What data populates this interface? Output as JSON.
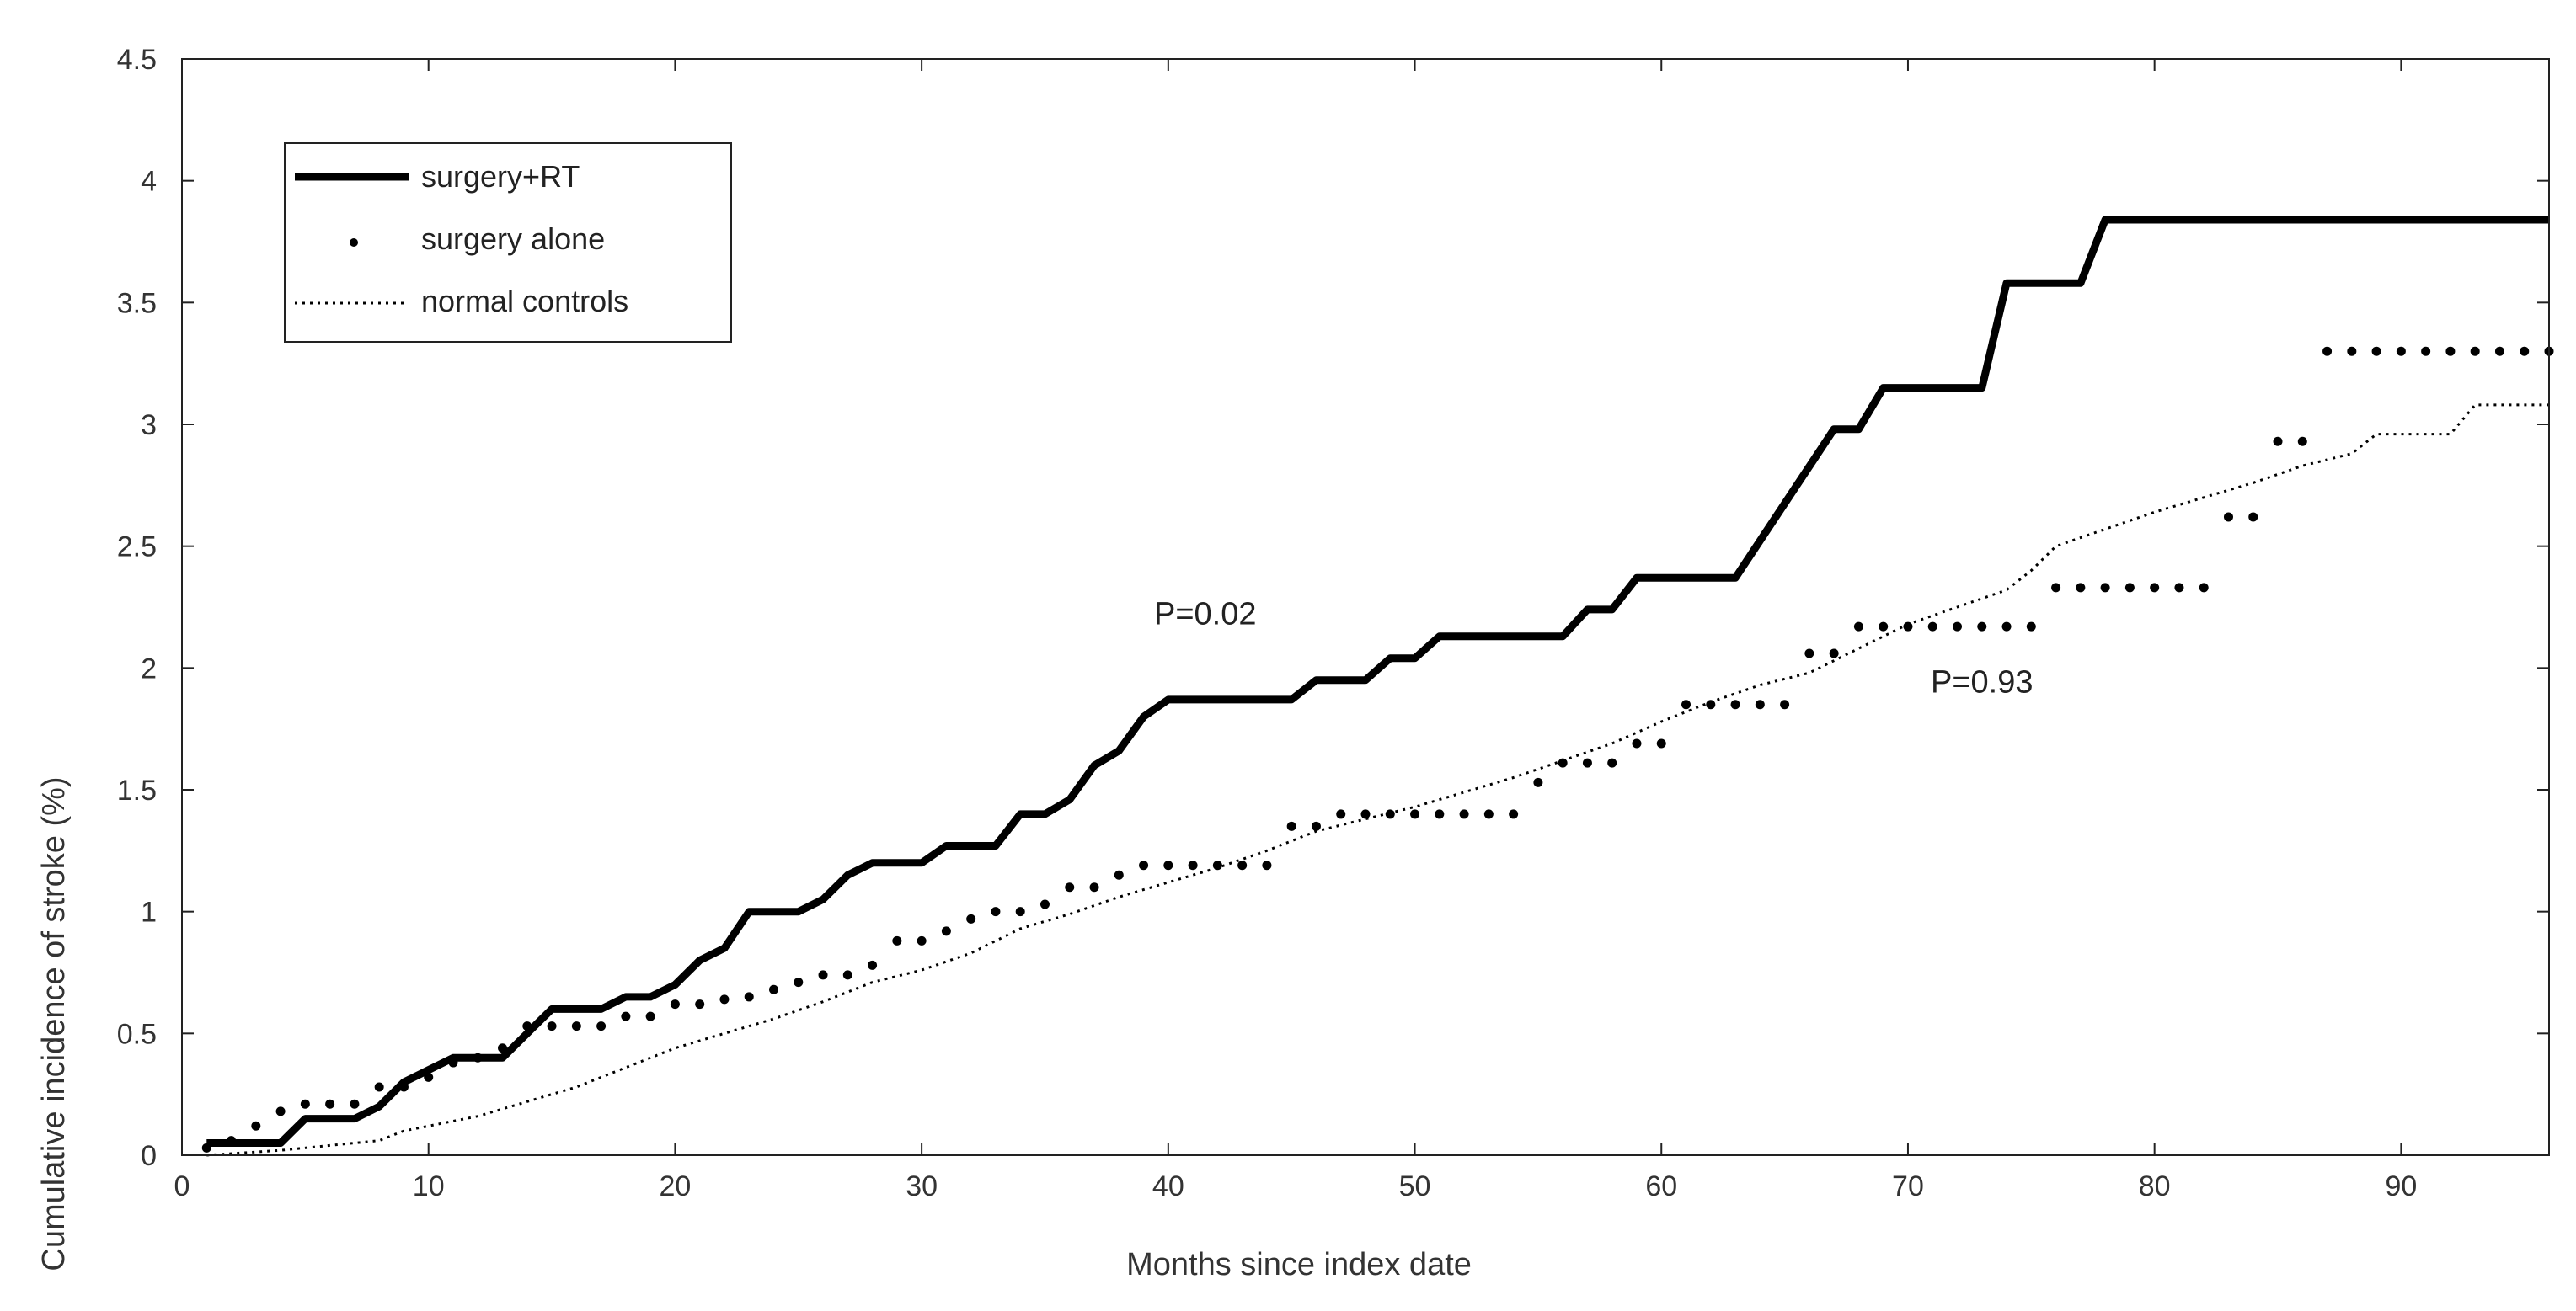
{
  "chart_data": {
    "type": "line",
    "title": "",
    "xlabel": "Months since index date",
    "ylabel": "Cumulative incidence of stroke (%)",
    "xlim": [
      0,
      96
    ],
    "ylim": [
      0,
      4.5
    ],
    "xticks": [
      0,
      10,
      20,
      30,
      40,
      50,
      60,
      70,
      80,
      90
    ],
    "yticks": [
      0,
      0.5,
      1,
      1.5,
      2,
      2.5,
      3,
      3.5,
      4,
      4.5
    ],
    "grid": false,
    "legend_position": "top-left",
    "series": [
      {
        "name": "surgery+RT",
        "style": "solid-thick",
        "points": [
          [
            1,
            0.05
          ],
          [
            4,
            0.05
          ],
          [
            5,
            0.15
          ],
          [
            7,
            0.15
          ],
          [
            8,
            0.2
          ],
          [
            9,
            0.3
          ],
          [
            10,
            0.35
          ],
          [
            11,
            0.4
          ],
          [
            13,
            0.4
          ],
          [
            14,
            0.5
          ],
          [
            15,
            0.6
          ],
          [
            17,
            0.6
          ],
          [
            18,
            0.65
          ],
          [
            19,
            0.65
          ],
          [
            20,
            0.7
          ],
          [
            21,
            0.8
          ],
          [
            22,
            0.85
          ],
          [
            23,
            1.0
          ],
          [
            25,
            1.0
          ],
          [
            26,
            1.05
          ],
          [
            27,
            1.15
          ],
          [
            28,
            1.2
          ],
          [
            30,
            1.2
          ],
          [
            31,
            1.27
          ],
          [
            33,
            1.27
          ],
          [
            34,
            1.4
          ],
          [
            35,
            1.4
          ],
          [
            36,
            1.46
          ],
          [
            37,
            1.6
          ],
          [
            38,
            1.66
          ],
          [
            39,
            1.8
          ],
          [
            40,
            1.87
          ],
          [
            45,
            1.87
          ],
          [
            46,
            1.95
          ],
          [
            48,
            1.95
          ],
          [
            49,
            2.04
          ],
          [
            50,
            2.04
          ],
          [
            51,
            2.13
          ],
          [
            56,
            2.13
          ],
          [
            57,
            2.24
          ],
          [
            58,
            2.24
          ],
          [
            59,
            2.37
          ],
          [
            63,
            2.37
          ],
          [
            67,
            2.98
          ],
          [
            68,
            2.98
          ],
          [
            69,
            3.15
          ],
          [
            73,
            3.15
          ],
          [
            74,
            3.58
          ],
          [
            77,
            3.58
          ],
          [
            78,
            3.84
          ],
          [
            96,
            3.84
          ]
        ]
      },
      {
        "name": "surgery alone",
        "style": "dotted-large",
        "points": [
          [
            1,
            0.03
          ],
          [
            2,
            0.06
          ],
          [
            3,
            0.12
          ],
          [
            4,
            0.18
          ],
          [
            5,
            0.21
          ],
          [
            6,
            0.21
          ],
          [
            7,
            0.21
          ],
          [
            8,
            0.28
          ],
          [
            9,
            0.28
          ],
          [
            10,
            0.32
          ],
          [
            11,
            0.38
          ],
          [
            12,
            0.4
          ],
          [
            13,
            0.44
          ],
          [
            14,
            0.53
          ],
          [
            15,
            0.53
          ],
          [
            16,
            0.53
          ],
          [
            17,
            0.53
          ],
          [
            18,
            0.57
          ],
          [
            19,
            0.57
          ],
          [
            20,
            0.62
          ],
          [
            21,
            0.62
          ],
          [
            22,
            0.64
          ],
          [
            23,
            0.65
          ],
          [
            24,
            0.68
          ],
          [
            25,
            0.71
          ],
          [
            26,
            0.74
          ],
          [
            27,
            0.74
          ],
          [
            28,
            0.78
          ],
          [
            29,
            0.88
          ],
          [
            30,
            0.88
          ],
          [
            31,
            0.92
          ],
          [
            32,
            0.97
          ],
          [
            33,
            1.0
          ],
          [
            34,
            1.0
          ],
          [
            35,
            1.03
          ],
          [
            36,
            1.1
          ],
          [
            37,
            1.1
          ],
          [
            38,
            1.15
          ],
          [
            39,
            1.19
          ],
          [
            40,
            1.19
          ],
          [
            41,
            1.19
          ],
          [
            42,
            1.19
          ],
          [
            43,
            1.19
          ],
          [
            44,
            1.19
          ],
          [
            45,
            1.35
          ],
          [
            46,
            1.35
          ],
          [
            47,
            1.4
          ],
          [
            48,
            1.4
          ],
          [
            49,
            1.4
          ],
          [
            50,
            1.4
          ],
          [
            51,
            1.4
          ],
          [
            52,
            1.4
          ],
          [
            53,
            1.4
          ],
          [
            54,
            1.4
          ],
          [
            55,
            1.53
          ],
          [
            56,
            1.61
          ],
          [
            57,
            1.61
          ],
          [
            58,
            1.61
          ],
          [
            59,
            1.69
          ],
          [
            60,
            1.69
          ],
          [
            61,
            1.85
          ],
          [
            62,
            1.85
          ],
          [
            63,
            1.85
          ],
          [
            64,
            1.85
          ],
          [
            65,
            1.85
          ],
          [
            66,
            2.06
          ],
          [
            67,
            2.06
          ],
          [
            68,
            2.17
          ],
          [
            69,
            2.17
          ],
          [
            70,
            2.17
          ],
          [
            71,
            2.17
          ],
          [
            72,
            2.17
          ],
          [
            73,
            2.17
          ],
          [
            74,
            2.17
          ],
          [
            75,
            2.17
          ],
          [
            76,
            2.33
          ],
          [
            77,
            2.33
          ],
          [
            78,
            2.33
          ],
          [
            79,
            2.33
          ],
          [
            80,
            2.33
          ],
          [
            81,
            2.33
          ],
          [
            82,
            2.33
          ],
          [
            83,
            2.62
          ],
          [
            84,
            2.62
          ],
          [
            85,
            2.93
          ],
          [
            86,
            2.93
          ],
          [
            87,
            3.3
          ],
          [
            88,
            3.3
          ],
          [
            89,
            3.3
          ],
          [
            90,
            3.3
          ],
          [
            91,
            3.3
          ],
          [
            92,
            3.3
          ],
          [
            93,
            3.3
          ],
          [
            94,
            3.3
          ],
          [
            95,
            3.3
          ],
          [
            96,
            3.3
          ]
        ]
      },
      {
        "name": "normal controls",
        "style": "dotted-fine",
        "points": [
          [
            1,
            0.0
          ],
          [
            4,
            0.02
          ],
          [
            6,
            0.04
          ],
          [
            8,
            0.06
          ],
          [
            9,
            0.1
          ],
          [
            10,
            0.12
          ],
          [
            12,
            0.16
          ],
          [
            14,
            0.22
          ],
          [
            16,
            0.28
          ],
          [
            18,
            0.36
          ],
          [
            20,
            0.44
          ],
          [
            22,
            0.5
          ],
          [
            24,
            0.56
          ],
          [
            26,
            0.63
          ],
          [
            28,
            0.71
          ],
          [
            30,
            0.76
          ],
          [
            32,
            0.83
          ],
          [
            34,
            0.93
          ],
          [
            36,
            0.99
          ],
          [
            38,
            1.06
          ],
          [
            40,
            1.12
          ],
          [
            42,
            1.18
          ],
          [
            44,
            1.25
          ],
          [
            46,
            1.33
          ],
          [
            48,
            1.38
          ],
          [
            50,
            1.43
          ],
          [
            52,
            1.49
          ],
          [
            54,
            1.55
          ],
          [
            56,
            1.62
          ],
          [
            58,
            1.69
          ],
          [
            60,
            1.78
          ],
          [
            62,
            1.86
          ],
          [
            64,
            1.93
          ],
          [
            66,
            1.98
          ],
          [
            68,
            2.08
          ],
          [
            70,
            2.18
          ],
          [
            72,
            2.25
          ],
          [
            74,
            2.32
          ],
          [
            75,
            2.4
          ],
          [
            76,
            2.5
          ],
          [
            78,
            2.57
          ],
          [
            80,
            2.64
          ],
          [
            82,
            2.7
          ],
          [
            84,
            2.76
          ],
          [
            86,
            2.83
          ],
          [
            88,
            2.88
          ],
          [
            89,
            2.96
          ],
          [
            92,
            2.96
          ],
          [
            93,
            3.08
          ],
          [
            96,
            3.08
          ]
        ]
      }
    ],
    "annotations": [
      {
        "text": "P=0.02",
        "x": 41.5,
        "y": 2.18
      },
      {
        "text": "P=0.93",
        "x": 73,
        "y": 1.9
      }
    ]
  }
}
